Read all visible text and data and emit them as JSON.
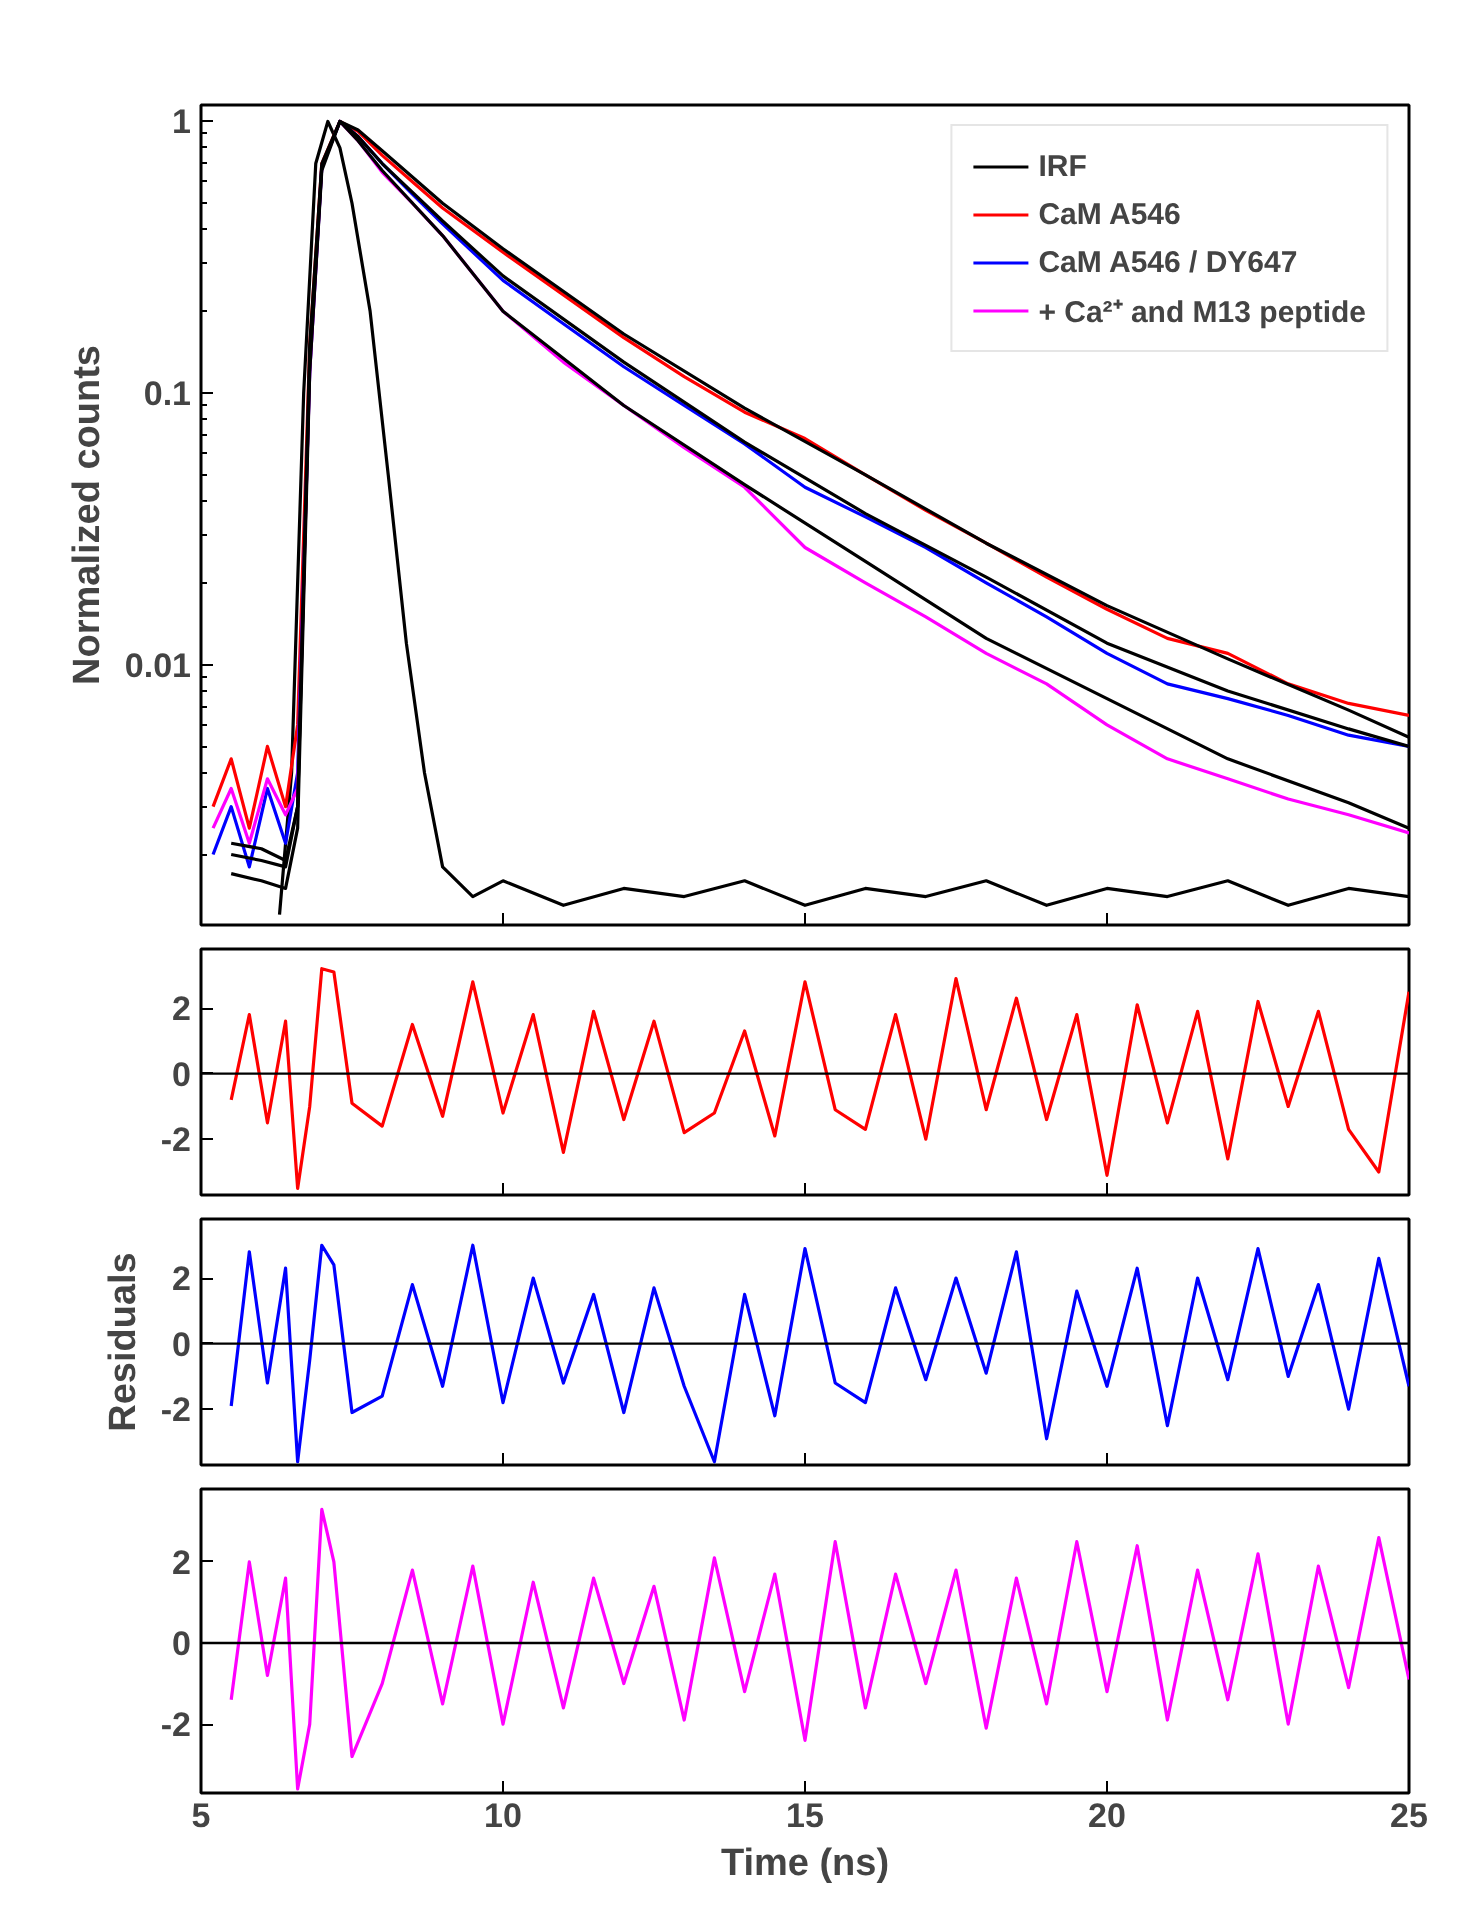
{
  "chart_data": [
    {
      "type": "line",
      "ylabel": "Normalized counts",
      "log": "y",
      "xlim": [
        5,
        25
      ],
      "xticks": [
        5,
        10,
        15,
        20,
        25
      ],
      "ylim": [
        0.0011,
        1.15
      ],
      "yticks": [
        0.01,
        0.1,
        1
      ],
      "grid": false,
      "legend": "top right",
      "tick_labels": "y",
      "series": [
        {
          "name": "IRF",
          "color": "#000000",
          "x": [
            6.3,
            6.5,
            6.7,
            6.9,
            7.1,
            7.3,
            7.5,
            7.8,
            8.1,
            8.4,
            8.7,
            9.0,
            9.5,
            10,
            11,
            12,
            13,
            14,
            15,
            16,
            17,
            18,
            19,
            20,
            21,
            22,
            23,
            24,
            25
          ],
          "values": [
            0.0012,
            0.004,
            0.1,
            0.7,
            1.0,
            0.8,
            0.5,
            0.2,
            0.05,
            0.012,
            0.004,
            0.0018,
            0.0014,
            0.0016,
            0.0013,
            0.0015,
            0.0014,
            0.0016,
            0.0013,
            0.0015,
            0.0014,
            0.0016,
            0.0013,
            0.0015,
            0.0014,
            0.0016,
            0.0013,
            0.0015,
            0.0014
          ]
        },
        {
          "name": "CaM A546",
          "color": "#ff0000",
          "x": [
            5.2,
            5.5,
            5.8,
            6.1,
            6.4,
            6.6,
            6.8,
            7.0,
            7.3,
            7.6,
            8.0,
            8.5,
            9,
            10,
            11,
            12,
            13,
            14,
            15,
            16,
            17,
            18,
            19,
            20,
            21,
            22,
            23,
            24,
            25
          ],
          "values": [
            0.003,
            0.0045,
            0.0025,
            0.005,
            0.003,
            0.006,
            0.15,
            0.7,
            1.0,
            0.92,
            0.75,
            0.6,
            0.48,
            0.33,
            0.23,
            0.16,
            0.115,
            0.085,
            0.068,
            0.05,
            0.037,
            0.028,
            0.021,
            0.016,
            0.0125,
            0.011,
            0.0085,
            0.0072,
            0.0065
          ]
        },
        {
          "name": "CaM A546 / DY647",
          "color": "#0000ff",
          "x": [
            5.2,
            5.5,
            5.8,
            6.1,
            6.4,
            6.6,
            6.8,
            7.0,
            7.3,
            7.6,
            8.0,
            8.5,
            9,
            10,
            11,
            12,
            13,
            14,
            15,
            16,
            17,
            18,
            19,
            20,
            21,
            22,
            23,
            24,
            25
          ],
          "values": [
            0.002,
            0.003,
            0.0018,
            0.0035,
            0.0022,
            0.004,
            0.12,
            0.68,
            1.0,
            0.88,
            0.7,
            0.54,
            0.42,
            0.26,
            0.18,
            0.125,
            0.09,
            0.065,
            0.045,
            0.035,
            0.027,
            0.02,
            0.015,
            0.011,
            0.0085,
            0.0075,
            0.0065,
            0.0055,
            0.005
          ]
        },
        {
          "name": "+ Ca²⁺ and M13 peptide",
          "color": "#ff00ff",
          "x": [
            5.2,
            5.5,
            5.8,
            6.1,
            6.4,
            6.6,
            6.8,
            7.0,
            7.3,
            7.6,
            8.0,
            8.5,
            9,
            10,
            11,
            12,
            13,
            14,
            15,
            16,
            17,
            18,
            19,
            20,
            21,
            22,
            23,
            24,
            25
          ],
          "values": [
            0.0025,
            0.0035,
            0.0022,
            0.0038,
            0.0028,
            0.0035,
            0.12,
            0.68,
            1.0,
            0.85,
            0.65,
            0.5,
            0.38,
            0.2,
            0.13,
            0.09,
            0.063,
            0.045,
            0.027,
            0.02,
            0.015,
            0.011,
            0.0085,
            0.006,
            0.0045,
            0.0038,
            0.0032,
            0.0028,
            0.0024
          ]
        },
        {
          "color": "#000000",
          "x": [
            5.5,
            6.0,
            6.4,
            6.6,
            6.8,
            7.0,
            7.3,
            7.6,
            8,
            9,
            10,
            12,
            14,
            16,
            18,
            20,
            22,
            24,
            25
          ],
          "values": [
            0.0022,
            0.0021,
            0.0019,
            0.003,
            0.15,
            0.7,
            1.0,
            0.93,
            0.78,
            0.5,
            0.34,
            0.165,
            0.088,
            0.05,
            0.028,
            0.0165,
            0.0105,
            0.0068,
            0.0054
          ]
        },
        {
          "color": "#000000",
          "x": [
            5.5,
            6.0,
            6.4,
            6.6,
            6.8,
            7.0,
            7.3,
            7.6,
            8,
            9,
            10,
            12,
            14,
            16,
            18,
            20,
            22,
            24,
            25
          ],
          "values": [
            0.002,
            0.0019,
            0.0018,
            0.003,
            0.13,
            0.68,
            1.0,
            0.88,
            0.7,
            0.43,
            0.27,
            0.13,
            0.066,
            0.036,
            0.021,
            0.012,
            0.008,
            0.0058,
            0.005
          ]
        },
        {
          "color": "#000000",
          "x": [
            5.5,
            6.0,
            6.4,
            6.6,
            6.8,
            7.0,
            7.3,
            7.6,
            8,
            9,
            10,
            12,
            14,
            16,
            18,
            20,
            22,
            24,
            25
          ],
          "values": [
            0.0017,
            0.0016,
            0.0015,
            0.0025,
            0.12,
            0.66,
            1.0,
            0.85,
            0.66,
            0.38,
            0.2,
            0.09,
            0.046,
            0.024,
            0.0125,
            0.0075,
            0.0045,
            0.0031,
            0.0025
          ]
        }
      ]
    },
    {
      "type": "line",
      "xlim": [
        5,
        25
      ],
      "xticks": [
        5,
        10,
        15,
        20,
        25
      ],
      "ylim": [
        -3.7,
        3.8
      ],
      "yticks": [
        -2,
        0,
        2
      ],
      "grid": false,
      "tick_labels": "y",
      "ref_lines": [
        {
          "axis": "y",
          "value": 0,
          "color": "#000000"
        }
      ],
      "x": [
        5.5,
        5.8,
        6.1,
        6.4,
        6.6,
        6.8,
        7.0,
        7.2,
        7.5,
        8.0,
        8.5,
        9.0,
        9.5,
        10.0,
        10.5,
        11.0,
        11.5,
        12.0,
        12.5,
        13.0,
        13.5,
        14.0,
        14.5,
        15.0,
        15.5,
        16.0,
        16.5,
        17.0,
        17.5,
        18.0,
        18.5,
        19.0,
        19.5,
        20.0,
        20.5,
        21.0,
        21.5,
        22.0,
        22.5,
        23.0,
        23.5,
        24.0,
        24.5,
        25.0
      ],
      "series": [
        {
          "color": "#ff0000",
          "values": [
            -0.8,
            1.8,
            -1.5,
            1.6,
            -3.5,
            -1.0,
            3.2,
            3.1,
            -0.9,
            -1.6,
            1.5,
            -1.3,
            2.8,
            -1.2,
            1.8,
            -2.4,
            1.9,
            -1.4,
            1.6,
            -1.8,
            -1.2,
            1.3,
            -1.9,
            2.8,
            -1.1,
            -1.7,
            1.8,
            -2.0,
            2.9,
            -1.1,
            2.3,
            -1.4,
            1.8,
            -3.1,
            2.1,
            -1.5,
            1.9,
            -2.6,
            2.2,
            -1.0,
            1.9,
            -1.7,
            -3.0,
            2.5
          ]
        }
      ]
    },
    {
      "type": "line",
      "ylabel": "Residuals",
      "xlim": [
        5,
        25
      ],
      "xticks": [
        5,
        10,
        15,
        20,
        25
      ],
      "ylim": [
        -3.7,
        3.8
      ],
      "yticks": [
        -2,
        0,
        2
      ],
      "grid": false,
      "tick_labels": "y",
      "ref_lines": [
        {
          "axis": "y",
          "value": 0,
          "color": "#000000"
        }
      ],
      "x": [
        5.5,
        5.8,
        6.1,
        6.4,
        6.6,
        6.8,
        7.0,
        7.2,
        7.5,
        8.0,
        8.5,
        9.0,
        9.5,
        10.0,
        10.5,
        11.0,
        11.5,
        12.0,
        12.5,
        13.0,
        13.5,
        14.0,
        14.5,
        15.0,
        15.5,
        16.0,
        16.5,
        17.0,
        17.5,
        18.0,
        18.5,
        19.0,
        19.5,
        20.0,
        20.5,
        21.0,
        21.5,
        22.0,
        22.5,
        23.0,
        23.5,
        24.0,
        24.5,
        25.0
      ],
      "series": [
        {
          "color": "#0000ff",
          "values": [
            -1.9,
            2.8,
            -1.2,
            2.3,
            -3.6,
            -0.5,
            3.0,
            2.4,
            -2.1,
            -1.6,
            1.8,
            -1.3,
            3.0,
            -1.8,
            2.0,
            -1.2,
            1.5,
            -2.1,
            1.7,
            -1.3,
            -3.6,
            1.5,
            -2.2,
            2.9,
            -1.2,
            -1.8,
            1.7,
            -1.1,
            2.0,
            -0.9,
            2.8,
            -2.9,
            1.6,
            -1.3,
            2.3,
            -2.5,
            2.0,
            -1.1,
            2.9,
            -1.0,
            1.8,
            -2.0,
            2.6,
            -1.3
          ]
        }
      ]
    },
    {
      "type": "line",
      "xlabel": "Time (ns)",
      "xlim": [
        5,
        25
      ],
      "xticks": [
        5,
        10,
        15,
        20,
        25
      ],
      "ylim": [
        -3.7,
        3.8
      ],
      "yticks": [
        -2,
        0,
        2
      ],
      "grid": false,
      "ref_lines": [
        {
          "axis": "y",
          "value": 0,
          "color": "#000000"
        }
      ],
      "x": [
        5.5,
        5.8,
        6.1,
        6.4,
        6.6,
        6.8,
        7.0,
        7.2,
        7.5,
        8.0,
        8.5,
        9.0,
        9.5,
        10.0,
        10.5,
        11.0,
        11.5,
        12.0,
        12.5,
        13.0,
        13.5,
        14.0,
        14.5,
        15.0,
        15.5,
        16.0,
        16.5,
        17.0,
        17.5,
        18.0,
        18.5,
        19.0,
        19.5,
        20.0,
        20.5,
        21.0,
        21.5,
        22.0,
        22.5,
        23.0,
        23.5,
        24.0,
        24.5,
        25.0
      ],
      "series": [
        {
          "color": "#ff00ff",
          "values": [
            -1.4,
            2.0,
            -0.8,
            1.6,
            -3.6,
            -2.0,
            3.3,
            2.0,
            -2.8,
            -1.0,
            1.8,
            -1.5,
            1.9,
            -2.0,
            1.5,
            -1.6,
            1.6,
            -1.0,
            1.4,
            -1.9,
            2.1,
            -1.2,
            1.7,
            -2.4,
            2.5,
            -1.6,
            1.7,
            -1.0,
            1.8,
            -2.1,
            1.6,
            -1.5,
            2.5,
            -1.2,
            2.4,
            -1.9,
            1.8,
            -1.4,
            2.2,
            -2.0,
            1.9,
            -1.1,
            2.6,
            -0.9
          ]
        }
      ]
    }
  ]
}
